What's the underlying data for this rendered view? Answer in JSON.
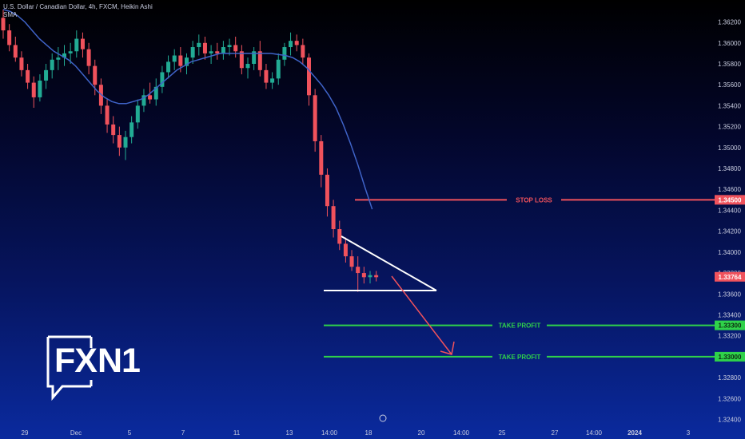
{
  "header": {
    "symbol_line": "U.S. Dollar / Canadian Dollar, 4h, FXCM, Heikin Ashi",
    "indicator": "SMA"
  },
  "logo": {
    "part1": "FX",
    "part2": "N1"
  },
  "colors": {
    "bull": "#22ab94",
    "bear": "#f0525c",
    "sma": "#3f63c8",
    "stop_loss": "#f0525c",
    "take_profit": "#2fd24a",
    "pattern": "#ffffff",
    "arrow": "#f0525c"
  },
  "chart_data": {
    "type": "candlestick",
    "title": "U.S. Dollar / Canadian Dollar, 4h, FXCM, Heikin Ashi",
    "xlabel": "",
    "ylabel": "",
    "ylim": [
      1.3232,
      1.3638
    ],
    "grid": false,
    "x_ticks": [
      "29",
      "Dec",
      "5",
      "7",
      "11",
      "13",
      "14:00",
      "18",
      "20",
      "14:00",
      "25",
      "27",
      "14:00",
      "2024",
      "3"
    ],
    "y_ticks": [
      "1.36200",
      "1.36000",
      "1.35800",
      "1.35600",
      "1.35400",
      "1.35200",
      "1.35000",
      "1.34800",
      "1.34600",
      "1.34400",
      "1.34200",
      "1.34000",
      "1.33800",
      "1.33600",
      "1.33400",
      "1.33200",
      "1.33000",
      "1.32800",
      "1.32600",
      "1.32400"
    ],
    "candles": [
      [
        1.3624,
        1.3632,
        1.3604,
        1.3612
      ],
      [
        1.3612,
        1.3618,
        1.3592,
        1.3598
      ],
      [
        1.3598,
        1.3606,
        1.3582,
        1.3586
      ],
      [
        1.3586,
        1.3592,
        1.3568,
        1.3574
      ],
      [
        1.3574,
        1.358,
        1.3556,
        1.3562
      ],
      [
        1.3562,
        1.3568,
        1.3538,
        1.3548
      ],
      [
        1.3548,
        1.357,
        1.3544,
        1.3564
      ],
      [
        1.3564,
        1.358,
        1.3556,
        1.3574
      ],
      [
        1.3574,
        1.359,
        1.3566,
        1.3584
      ],
      [
        1.3584,
        1.3596,
        1.3574,
        1.3586
      ],
      [
        1.3586,
        1.3598,
        1.3578,
        1.359
      ],
      [
        1.359,
        1.36,
        1.358,
        1.3592
      ],
      [
        1.3592,
        1.3612,
        1.3586,
        1.3604
      ],
      [
        1.3604,
        1.361,
        1.3586,
        1.3594
      ],
      [
        1.3594,
        1.36,
        1.357,
        1.3578
      ],
      [
        1.3578,
        1.3584,
        1.355,
        1.356
      ],
      [
        1.356,
        1.3566,
        1.3532,
        1.354
      ],
      [
        1.354,
        1.3546,
        1.3514,
        1.3522
      ],
      [
        1.3522,
        1.353,
        1.3504,
        1.3512
      ],
      [
        1.3512,
        1.352,
        1.3492,
        1.35
      ],
      [
        1.35,
        1.3516,
        1.3488,
        1.351
      ],
      [
        1.351,
        1.353,
        1.3504,
        1.3524
      ],
      [
        1.3524,
        1.3546,
        1.3518,
        1.354
      ],
      [
        1.354,
        1.3556,
        1.3534,
        1.355
      ],
      [
        1.355,
        1.3562,
        1.3542,
        1.3546
      ],
      [
        1.3546,
        1.3566,
        1.354,
        1.3558
      ],
      [
        1.3558,
        1.3578,
        1.3552,
        1.3572
      ],
      [
        1.3572,
        1.3588,
        1.3566,
        1.3582
      ],
      [
        1.3582,
        1.3594,
        1.3574,
        1.3588
      ],
      [
        1.3588,
        1.3596,
        1.3572,
        1.3578
      ],
      [
        1.3578,
        1.359,
        1.357,
        1.3586
      ],
      [
        1.3586,
        1.3602,
        1.358,
        1.3596
      ],
      [
        1.3596,
        1.3608,
        1.3588,
        1.36
      ],
      [
        1.36,
        1.3606,
        1.3584,
        1.359
      ],
      [
        1.359,
        1.3598,
        1.358,
        1.3592
      ],
      [
        1.3592,
        1.36,
        1.3584,
        1.359
      ],
      [
        1.359,
        1.3602,
        1.3584,
        1.3596
      ],
      [
        1.3596,
        1.3604,
        1.3588,
        1.3598
      ],
      [
        1.3598,
        1.3606,
        1.3586,
        1.3592
      ],
      [
        1.3592,
        1.3598,
        1.357,
        1.3576
      ],
      [
        1.3576,
        1.3586,
        1.3566,
        1.358
      ],
      [
        1.358,
        1.3596,
        1.3574,
        1.3592
      ],
      [
        1.3592,
        1.3602,
        1.3568,
        1.3574
      ],
      [
        1.3574,
        1.358,
        1.3556,
        1.3562
      ],
      [
        1.3562,
        1.3572,
        1.3556,
        1.3566
      ],
      [
        1.3566,
        1.359,
        1.356,
        1.3584
      ],
      [
        1.3584,
        1.36,
        1.3578,
        1.3596
      ],
      [
        1.3596,
        1.361,
        1.3588,
        1.3602
      ],
      [
        1.3602,
        1.3608,
        1.3592,
        1.3598
      ],
      [
        1.3598,
        1.3604,
        1.358,
        1.3586
      ],
      [
        1.3586,
        1.359,
        1.354,
        1.355
      ],
      [
        1.355,
        1.3556,
        1.3496,
        1.3506
      ],
      [
        1.3506,
        1.3512,
        1.3462,
        1.3474
      ],
      [
        1.3474,
        1.348,
        1.3434,
        1.3444
      ],
      [
        1.3444,
        1.345,
        1.3414,
        1.3422
      ],
      [
        1.3422,
        1.343,
        1.3402,
        1.3408
      ],
      [
        1.3408,
        1.3414,
        1.339,
        1.3396
      ],
      [
        1.3396,
        1.3402,
        1.3382,
        1.3386
      ],
      [
        1.3386,
        1.3396,
        1.3362,
        1.338
      ],
      [
        1.338,
        1.3386,
        1.337,
        1.3376
      ],
      [
        1.3376,
        1.3382,
        1.337,
        1.3378
      ],
      [
        1.3378,
        1.3382,
        1.3372,
        1.3376
      ]
    ],
    "sma": [
      1.3632,
      1.363,
      1.3626,
      1.362,
      1.3612,
      1.3604,
      1.3598,
      1.3592,
      1.3588,
      1.3584,
      1.3578,
      1.357,
      1.3562,
      1.3554,
      1.3548,
      1.3544,
      1.3542,
      1.3542,
      1.3544,
      1.3546,
      1.355,
      1.3556,
      1.3562,
      1.3568,
      1.3574,
      1.3578,
      1.3582,
      1.3584,
      1.3586,
      1.3588,
      1.359,
      1.359,
      1.359,
      1.359,
      1.359,
      1.359,
      1.359,
      1.359,
      1.3589,
      1.3588,
      1.3586,
      1.3582,
      1.3576,
      1.3568,
      1.356,
      1.355,
      1.3538,
      1.3522,
      1.3504,
      1.3484,
      1.3462,
      1.3441
    ],
    "levels": [
      {
        "name": "STOP LOSS",
        "price": 1.345,
        "tag": "1.34500"
      },
      {
        "name": "TAKE PROFIT",
        "price": 1.333,
        "tag": "1.33300"
      },
      {
        "name": "TAKE PROFIT",
        "price": 1.33,
        "tag": "1.33000"
      }
    ],
    "current_price_tag": "1.33764"
  }
}
